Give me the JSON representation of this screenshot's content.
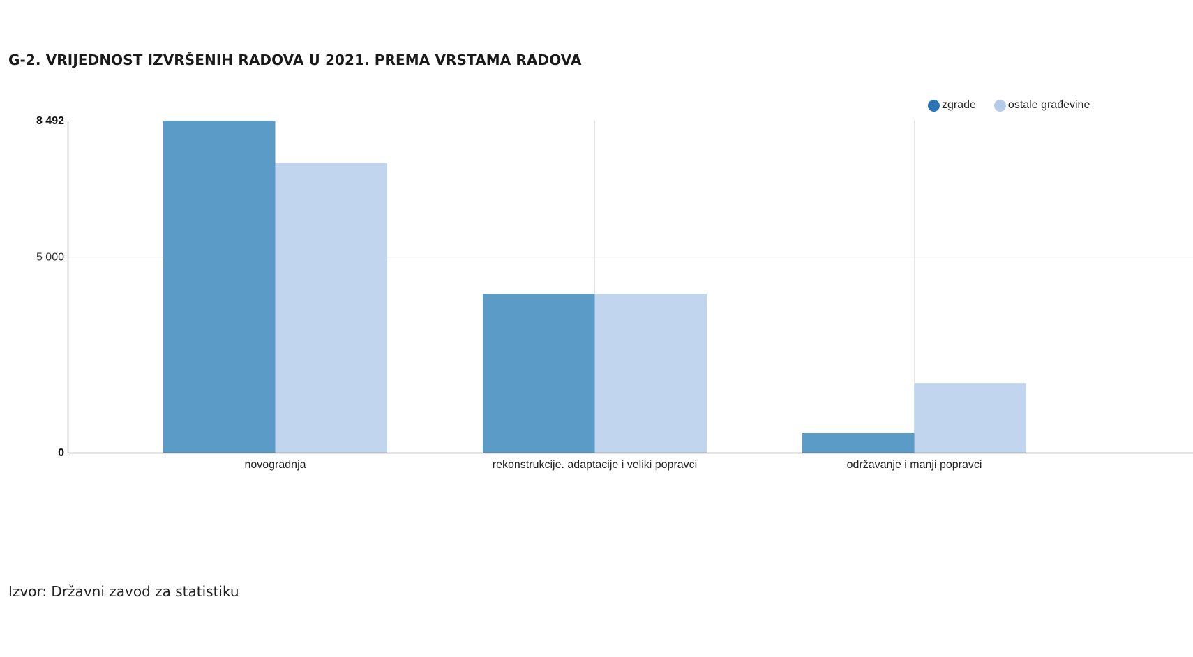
{
  "chart_data": {
    "type": "bar",
    "title": "G-2. VRIJEDNOST IZVRŠENIH RADOVA U 2021. PREMA VRSTAMA RADOVA",
    "categories": [
      "novogradnja",
      "rekonstrukcije. adaptacije i veliki popravci",
      "održavanje i manji popravci"
    ],
    "series": [
      {
        "name": "zgrade",
        "values": [
          8492,
          4060,
          500
        ],
        "color": "#5a9bc8"
      },
      {
        "name": "ostale građevine",
        "values": [
          7410,
          4060,
          1780
        ],
        "color": "#c2d5ee"
      }
    ],
    "legend_colors": [
      "#2b75b4",
      "#b5cce9"
    ],
    "ylim": [
      0,
      8492
    ],
    "yticks": [
      {
        "value": 0,
        "label": "0"
      },
      {
        "value": 5000,
        "label": "5 000"
      },
      {
        "value": 8492,
        "label": "8 492"
      }
    ],
    "xlabel": "",
    "ylabel": "",
    "grid": true,
    "legend_position": "top-right"
  },
  "source": "Izvor: Državni zavod za statistiku"
}
